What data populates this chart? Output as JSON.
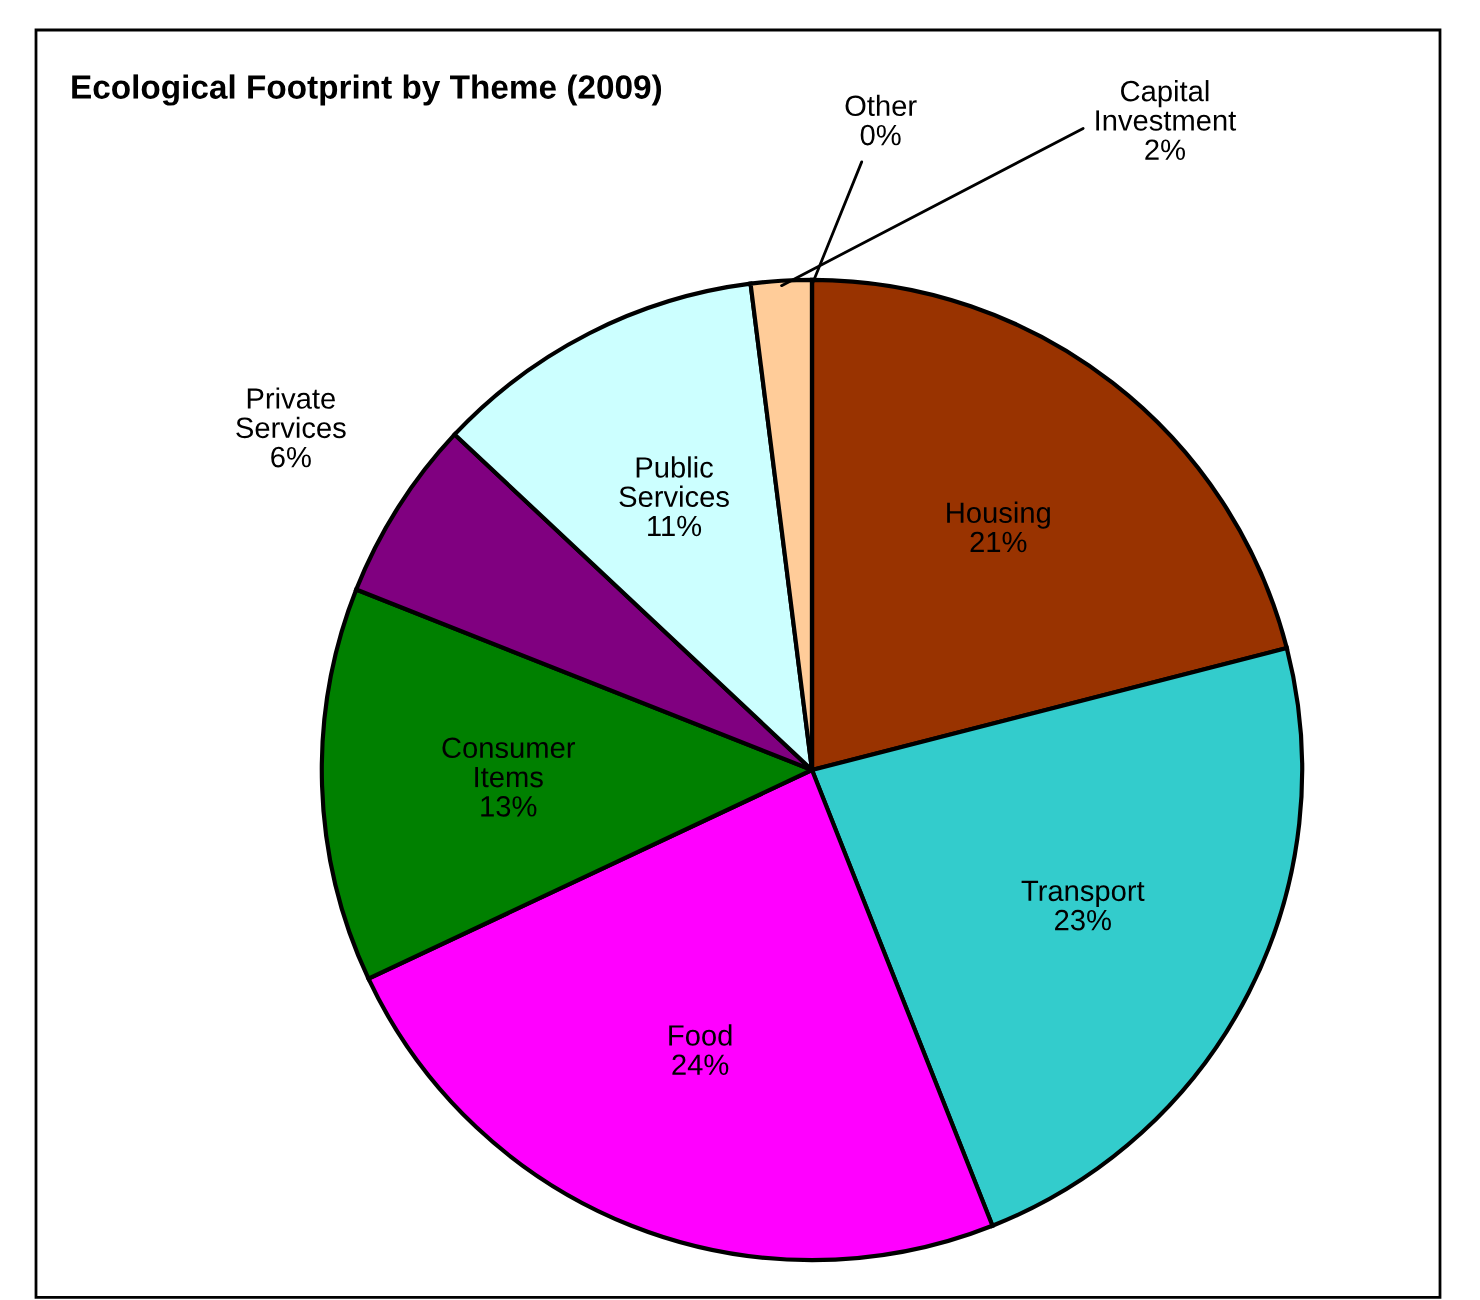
{
  "chart_data": {
    "type": "pie",
    "title": "Ecological Footprint by Theme (2009)",
    "categories": [
      "Housing",
      "Transport",
      "Food",
      "Consumer Items",
      "Private Services",
      "Public Services",
      "Capital Investment",
      "Other"
    ],
    "values": [
      21,
      23,
      24,
      13,
      6,
      11,
      2,
      0
    ],
    "colors": [
      "#993300",
      "#33cccc",
      "#ff00ff",
      "#008000",
      "#800080",
      "#ccffff",
      "#ffcc99",
      "#333333"
    ],
    "value_labels": [
      "21%",
      "23%",
      "24%",
      "13%",
      "6%",
      "11%",
      "2%",
      "0%"
    ],
    "legend": false
  }
}
